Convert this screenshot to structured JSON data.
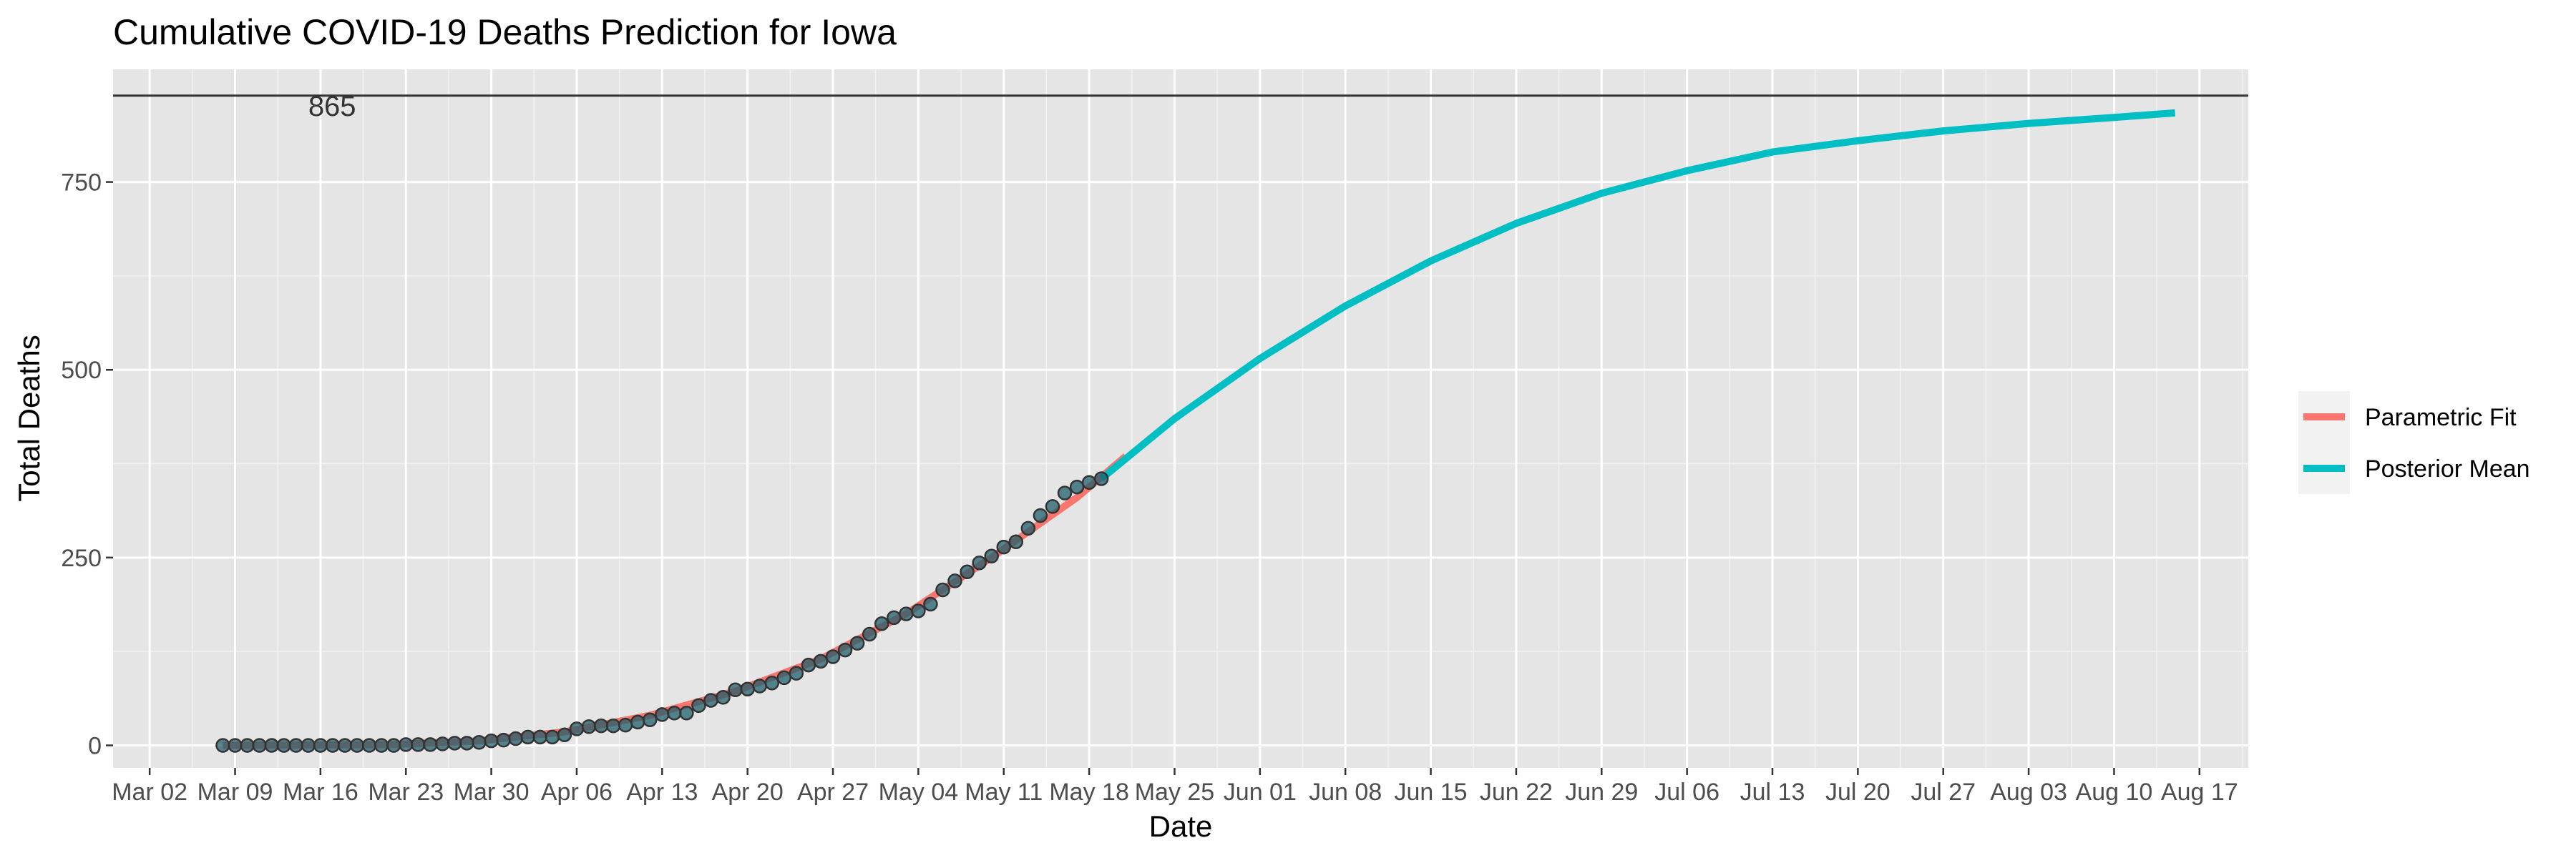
{
  "chart_data": {
    "type": "line",
    "title": "Cumulative COVID-19 Deaths Prediction for Iowa",
    "xlabel": "Date",
    "ylabel": "Total Deaths",
    "x_axis": {
      "type": "date",
      "range": [
        "2020-02-28",
        "2020-08-21"
      ],
      "ticks": [
        {
          "date": "2020-03-02",
          "label": "Mar 02"
        },
        {
          "date": "2020-03-09",
          "label": "Mar 09"
        },
        {
          "date": "2020-03-16",
          "label": "Mar 16"
        },
        {
          "date": "2020-03-23",
          "label": "Mar 23"
        },
        {
          "date": "2020-03-30",
          "label": "Mar 30"
        },
        {
          "date": "2020-04-06",
          "label": "Apr 06"
        },
        {
          "date": "2020-04-13",
          "label": "Apr 13"
        },
        {
          "date": "2020-04-20",
          "label": "Apr 20"
        },
        {
          "date": "2020-04-27",
          "label": "Apr 27"
        },
        {
          "date": "2020-05-04",
          "label": "May 04"
        },
        {
          "date": "2020-05-11",
          "label": "May 11"
        },
        {
          "date": "2020-05-18",
          "label": "May 18"
        },
        {
          "date": "2020-05-25",
          "label": "May 25"
        },
        {
          "date": "2020-06-01",
          "label": "Jun 01"
        },
        {
          "date": "2020-06-08",
          "label": "Jun 08"
        },
        {
          "date": "2020-06-15",
          "label": "Jun 15"
        },
        {
          "date": "2020-06-22",
          "label": "Jun 22"
        },
        {
          "date": "2020-06-29",
          "label": "Jun 29"
        },
        {
          "date": "2020-07-06",
          "label": "Jul 06"
        },
        {
          "date": "2020-07-13",
          "label": "Jul 13"
        },
        {
          "date": "2020-07-20",
          "label": "Jul 20"
        },
        {
          "date": "2020-07-27",
          "label": "Jul 27"
        },
        {
          "date": "2020-08-03",
          "label": "Aug 03"
        },
        {
          "date": "2020-08-10",
          "label": "Aug 10"
        },
        {
          "date": "2020-08-17",
          "label": "Aug 17"
        }
      ]
    },
    "y_axis": {
      "range": [
        -30,
        900
      ],
      "ticks": [
        0,
        250,
        500,
        750
      ]
    },
    "grid": true,
    "legend": {
      "position": "right",
      "entries": [
        {
          "name": "Parametric Fit",
          "color": "#F8766D"
        },
        {
          "name": "Posterior Mean",
          "color": "#00BFC4"
        }
      ]
    },
    "reference_line": {
      "y": 865,
      "label": "865",
      "color": "#333333"
    },
    "observed": {
      "start_date": "2020-03-08",
      "point_fill": "#1f5f6b",
      "point_stroke": "#333333",
      "values": [
        0,
        0,
        0,
        0,
        0,
        0,
        0,
        0,
        0,
        0,
        0,
        0,
        0,
        0,
        0,
        1,
        1,
        1,
        2,
        3,
        3,
        4,
        6,
        7,
        9,
        11,
        11,
        11,
        14,
        22,
        25,
        26,
        26,
        27,
        31,
        34,
        41,
        43,
        43,
        53,
        60,
        64,
        74,
        75,
        79,
        83,
        90,
        96,
        107,
        112,
        118,
        127,
        136,
        148,
        162,
        170,
        175,
        179,
        188,
        207,
        219,
        231,
        243,
        252,
        264,
        271,
        289,
        306,
        318,
        336,
        344,
        350,
        355
      ]
    },
    "series": [
      {
        "name": "Parametric Fit",
        "color": "#F8766D",
        "points": [
          {
            "x": "2020-03-08",
            "y": 0
          },
          {
            "x": "2020-03-22",
            "y": 1
          },
          {
            "x": "2020-03-29",
            "y": 6
          },
          {
            "x": "2020-04-05",
            "y": 18
          },
          {
            "x": "2020-04-12",
            "y": 40
          },
          {
            "x": "2020-04-19",
            "y": 72
          },
          {
            "x": "2020-04-26",
            "y": 115
          },
          {
            "x": "2020-05-03",
            "y": 175
          },
          {
            "x": "2020-05-10",
            "y": 250
          },
          {
            "x": "2020-05-17",
            "y": 330
          },
          {
            "x": "2020-05-21",
            "y": 385
          }
        ]
      },
      {
        "name": "Posterior Mean",
        "color": "#00BFC4",
        "points": [
          {
            "x": "2020-05-19",
            "y": 355
          },
          {
            "x": "2020-05-25",
            "y": 435
          },
          {
            "x": "2020-06-01",
            "y": 515
          },
          {
            "x": "2020-06-08",
            "y": 585
          },
          {
            "x": "2020-06-15",
            "y": 645
          },
          {
            "x": "2020-06-22",
            "y": 695
          },
          {
            "x": "2020-06-29",
            "y": 735
          },
          {
            "x": "2020-07-06",
            "y": 765
          },
          {
            "x": "2020-07-13",
            "y": 790
          },
          {
            "x": "2020-07-20",
            "y": 805
          },
          {
            "x": "2020-07-27",
            "y": 818
          },
          {
            "x": "2020-08-03",
            "y": 828
          },
          {
            "x": "2020-08-10",
            "y": 836
          },
          {
            "x": "2020-08-15",
            "y": 842
          }
        ]
      }
    ]
  }
}
